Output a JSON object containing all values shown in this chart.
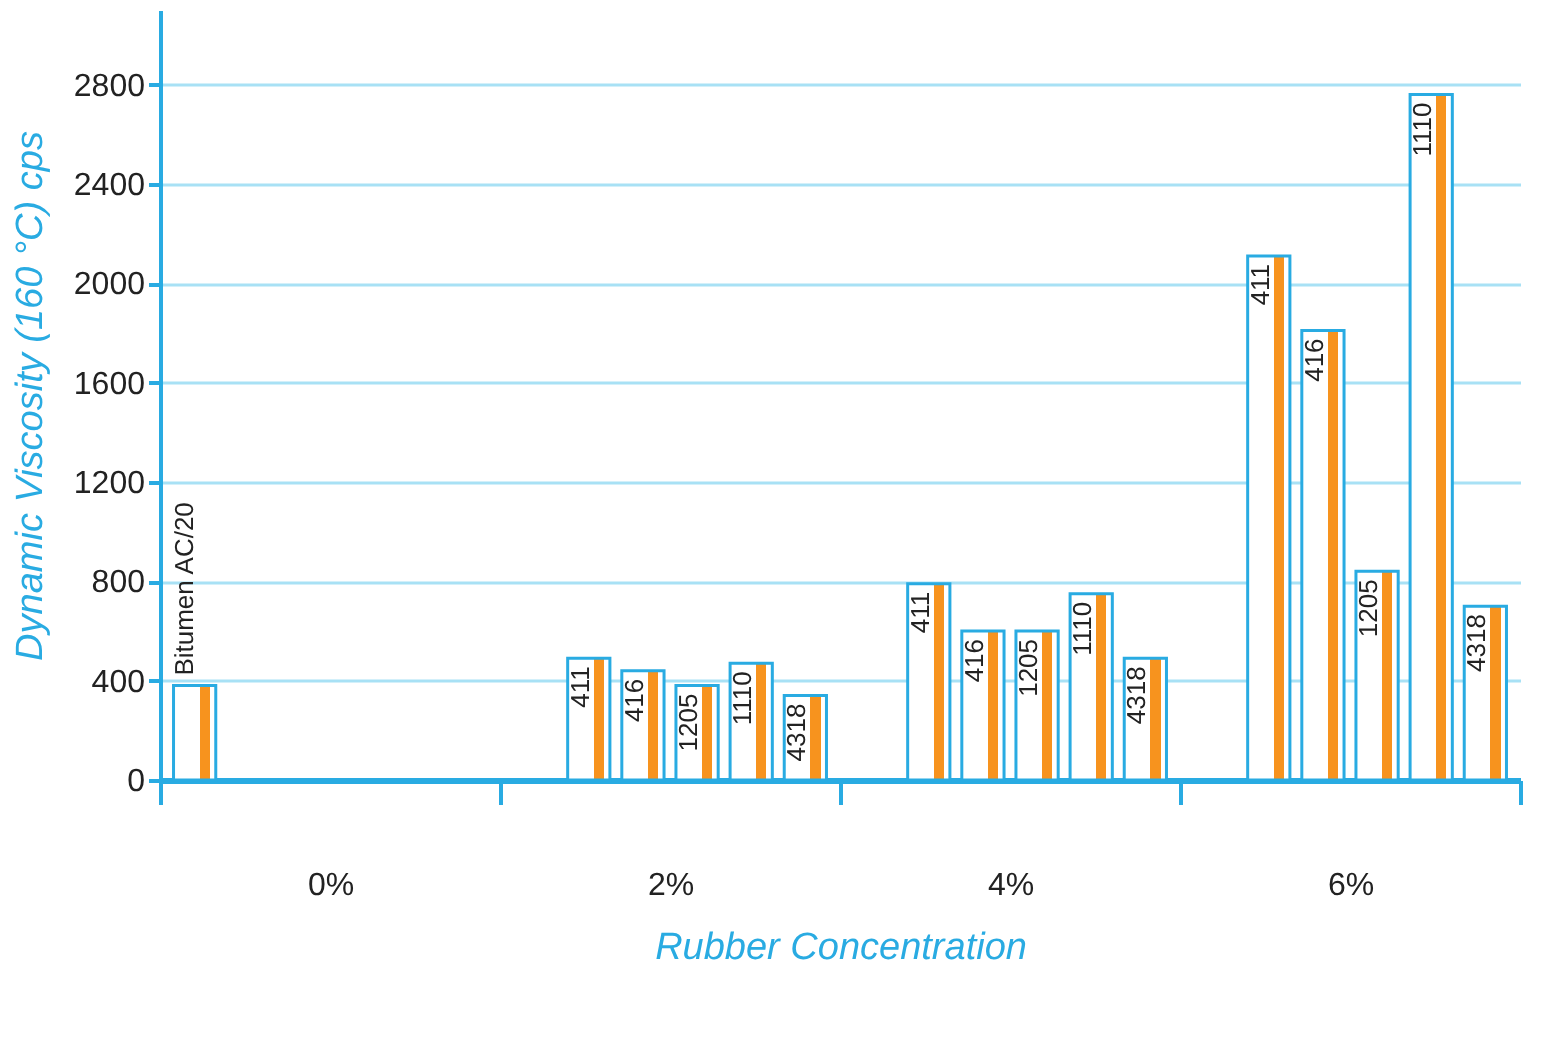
{
  "chart_data": {
    "type": "bar",
    "categories": [
      "0%",
      "2%",
      "4%",
      "6%"
    ],
    "xlabel": "Rubber Concentration",
    "ylabel": "Dynamic Viscosity (160 °C) cps",
    "ylim": [
      0,
      3100
    ],
    "yticks": [
      0,
      400,
      800,
      1200,
      1600,
      2000,
      2400,
      2800
    ],
    "grid": "y",
    "series": [
      {
        "name": "Bitumen AC/20",
        "color": "#29abe2",
        "values": [
          380,
          null,
          null,
          null
        ]
      },
      {
        "name": "411",
        "color": "#29abe2",
        "values": [
          null,
          490,
          790,
          2110
        ]
      },
      {
        "name": "416",
        "color": "#29abe2",
        "values": [
          null,
          440,
          600,
          1810
        ]
      },
      {
        "name": "1205",
        "color": "#29abe2",
        "values": [
          null,
          380,
          600,
          840
        ]
      },
      {
        "name": "1110",
        "color": "#29abe2",
        "values": [
          null,
          470,
          750,
          2760
        ]
      },
      {
        "name": "4318",
        "color": "#29abe2",
        "values": [
          null,
          340,
          490,
          700
        ]
      }
    ]
  }
}
